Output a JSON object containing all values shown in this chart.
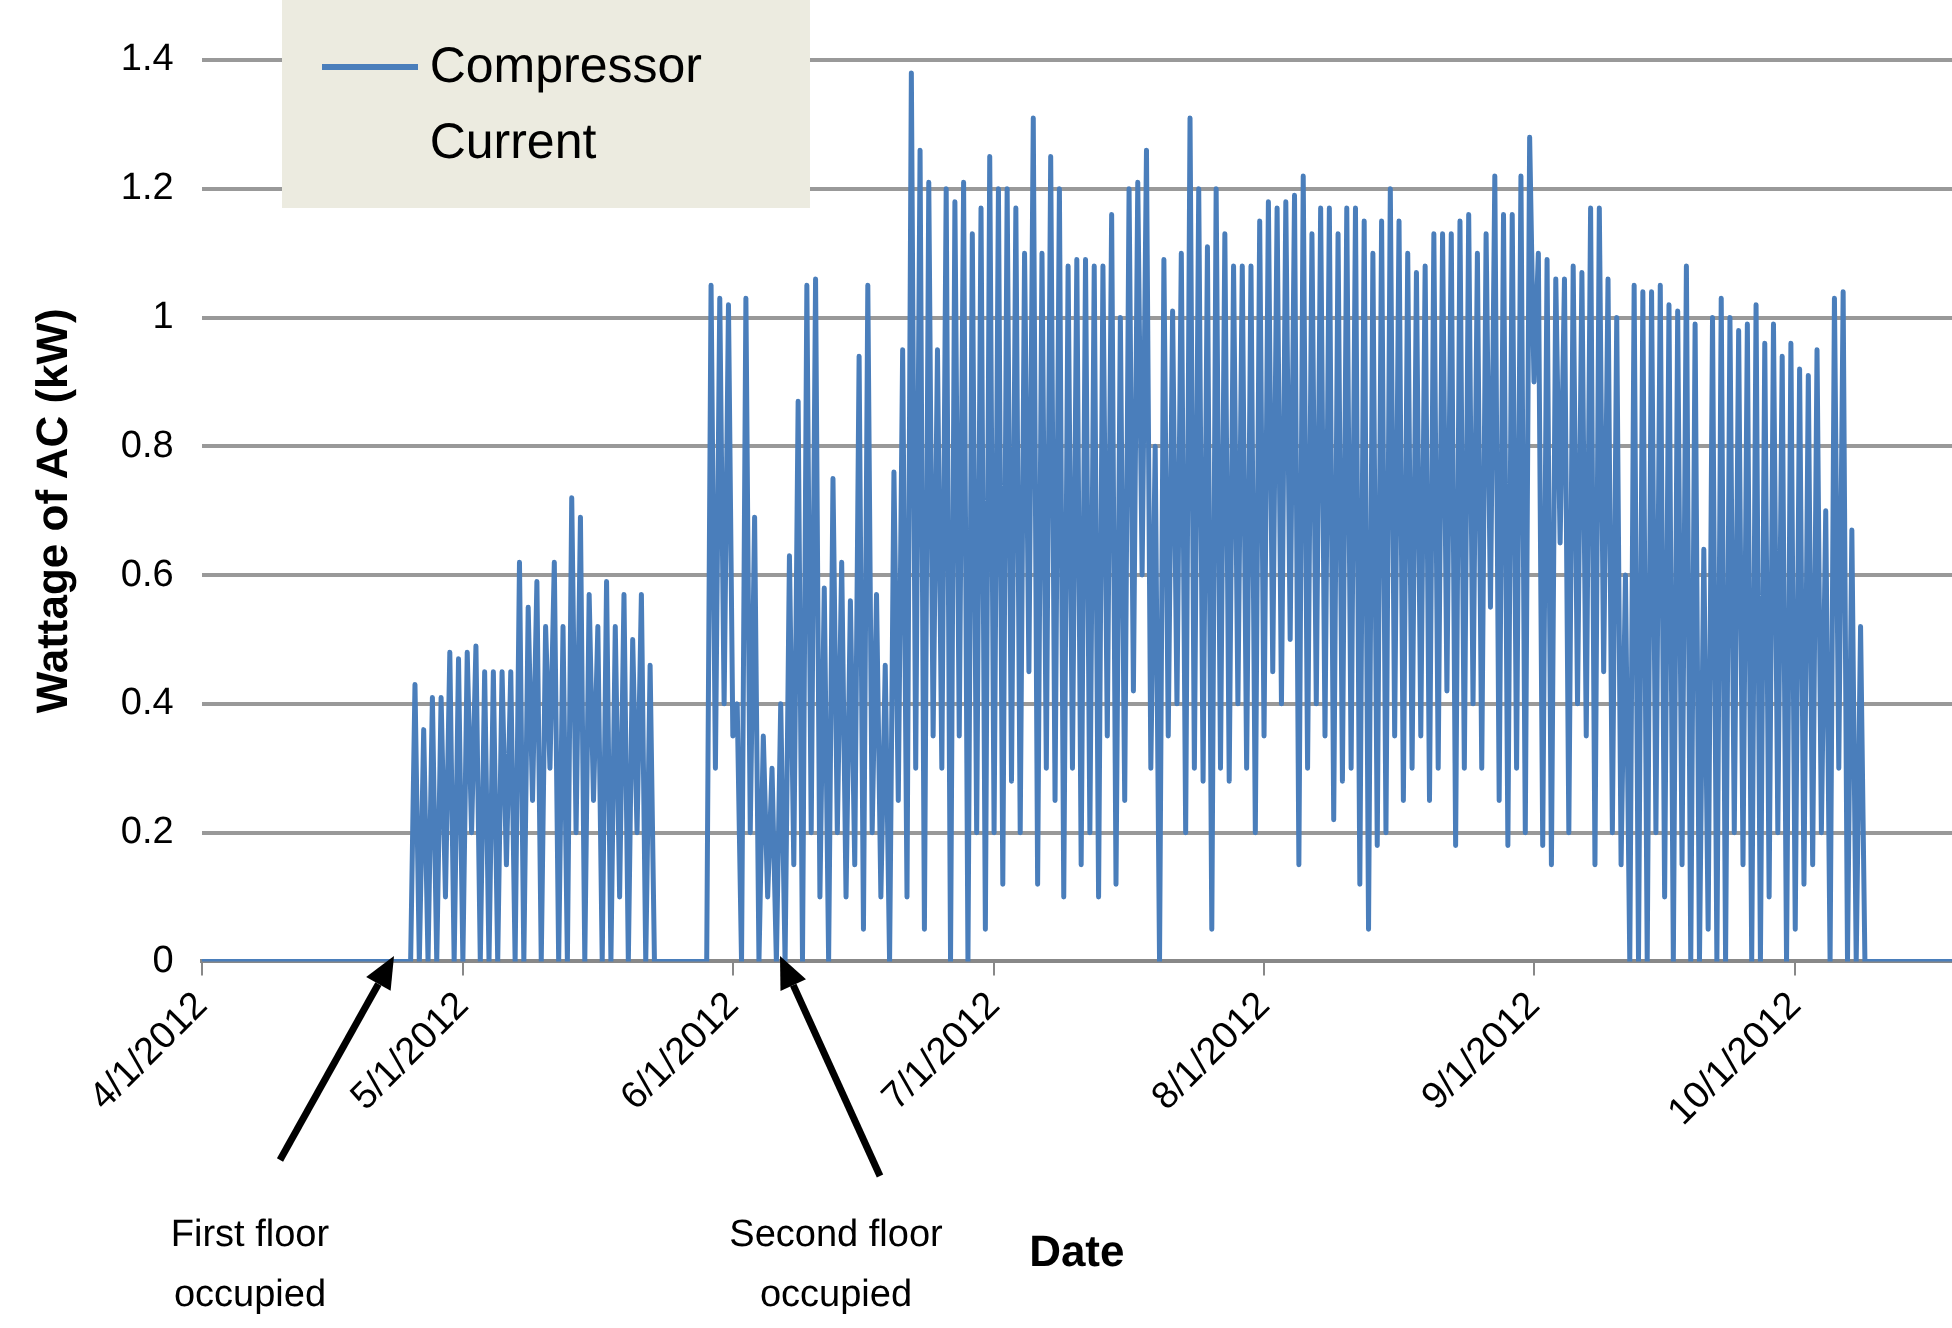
{
  "chart_data": {
    "type": "line",
    "xlabel": "Date",
    "ylabel": "Wattage of AC (kW)",
    "xlim": [
      "2012-04-01",
      "2012-10-19"
    ],
    "ylim": [
      0,
      1.4
    ],
    "xticks": [
      {
        "value": "2012-04-01",
        "label": "4/1/2012"
      },
      {
        "value": "2012-05-01",
        "label": "5/1/2012"
      },
      {
        "value": "2012-06-01",
        "label": "6/1/2012"
      },
      {
        "value": "2012-07-01",
        "label": "7/1/2012"
      },
      {
        "value": "2012-08-01",
        "label": "8/1/2012"
      },
      {
        "value": "2012-09-01",
        "label": "9/1/2012"
      },
      {
        "value": "2012-10-01",
        "label": "10/1/2012"
      }
    ],
    "yticks": [
      0,
      0.2,
      0.4,
      0.6,
      0.8,
      1,
      1.2,
      1.4
    ],
    "grid": "y",
    "legend": "top left",
    "marker": "none",
    "line_style": "solid",
    "annotations": [
      "First floor occupied",
      "Second floor occupied"
    ],
    "series": [
      {
        "name": "Compressor Current",
        "color": "#4a7ebb",
        "x": [
          "2012-04-01",
          "2012-04-25",
          "2012-04-25T12:00",
          "2012-04-26",
          "2012-04-26T12:00",
          "2012-04-27",
          "2012-04-27T12:00",
          "2012-04-28",
          "2012-04-28T12:00",
          "2012-04-29",
          "2012-04-29T12:00",
          "2012-04-30",
          "2012-04-30T12:00",
          "2012-05-01",
          "2012-05-01T12:00",
          "2012-05-02",
          "2012-05-02T12:00",
          "2012-05-03",
          "2012-05-03T12:00",
          "2012-05-04",
          "2012-05-04T12:00",
          "2012-05-05",
          "2012-05-05T12:00",
          "2012-05-06",
          "2012-05-06T12:00",
          "2012-05-07",
          "2012-05-07T12:00",
          "2012-05-08",
          "2012-05-08T12:00",
          "2012-05-09",
          "2012-05-09T12:00",
          "2012-05-10",
          "2012-05-10T12:00",
          "2012-05-11",
          "2012-05-11T12:00",
          "2012-05-12",
          "2012-05-12T12:00",
          "2012-05-13",
          "2012-05-13T12:00",
          "2012-05-14",
          "2012-05-14T12:00",
          "2012-05-15",
          "2012-05-15T12:00",
          "2012-05-16",
          "2012-05-16T12:00",
          "2012-05-17",
          "2012-05-17T12:00",
          "2012-05-18",
          "2012-05-18T12:00",
          "2012-05-19",
          "2012-05-19T12:00",
          "2012-05-20",
          "2012-05-20T12:00",
          "2012-05-21",
          "2012-05-21T12:00",
          "2012-05-22",
          "2012-05-22T12:00",
          "2012-05-23",
          "2012-05-28",
          "2012-05-29",
          "2012-05-29T12:00",
          "2012-05-30",
          "2012-05-30T12:00",
          "2012-05-31",
          "2012-05-31T12:00",
          "2012-06-01",
          "2012-06-01T12:00",
          "2012-06-02",
          "2012-06-02T12:00",
          "2012-06-03",
          "2012-06-03T12:00",
          "2012-06-04",
          "2012-06-04T12:00",
          "2012-06-05",
          "2012-06-05T12:00",
          "2012-06-06",
          "2012-06-06T12:00",
          "2012-06-07",
          "2012-06-07T12:00",
          "2012-06-08",
          "2012-06-08T12:00",
          "2012-06-09",
          "2012-06-09T12:00",
          "2012-06-10",
          "2012-06-10T12:00",
          "2012-06-11",
          "2012-06-11T12:00",
          "2012-06-12",
          "2012-06-12T12:00",
          "2012-06-13",
          "2012-06-13T12:00",
          "2012-06-14",
          "2012-06-14T12:00",
          "2012-06-15",
          "2012-06-15T12:00",
          "2012-06-16",
          "2012-06-16T12:00",
          "2012-06-17",
          "2012-06-17T12:00",
          "2012-06-18",
          "2012-06-18T12:00",
          "2012-06-19",
          "2012-06-19T12:00",
          "2012-06-20",
          "2012-06-20T12:00",
          "2012-06-21",
          "2012-06-21T12:00",
          "2012-06-22",
          "2012-06-22T12:00",
          "2012-06-23",
          "2012-06-23T12:00",
          "2012-06-24",
          "2012-06-24T12:00",
          "2012-06-25",
          "2012-06-25T12:00",
          "2012-06-26",
          "2012-06-26T12:00",
          "2012-06-27",
          "2012-06-27T12:00",
          "2012-06-28",
          "2012-06-28T12:00",
          "2012-06-29",
          "2012-06-29T12:00",
          "2012-06-30",
          "2012-06-30T12:00",
          "2012-07-01",
          "2012-07-01T12:00",
          "2012-07-02",
          "2012-07-02T12:00",
          "2012-07-03",
          "2012-07-03T12:00",
          "2012-07-04",
          "2012-07-04T12:00",
          "2012-07-05",
          "2012-07-05T12:00",
          "2012-07-06",
          "2012-07-06T12:00",
          "2012-07-07",
          "2012-07-07T12:00",
          "2012-07-08",
          "2012-07-08T12:00",
          "2012-07-09",
          "2012-07-09T12:00",
          "2012-07-10",
          "2012-07-10T12:00",
          "2012-07-11",
          "2012-07-11T12:00",
          "2012-07-12",
          "2012-07-12T12:00",
          "2012-07-13",
          "2012-07-13T12:00",
          "2012-07-14",
          "2012-07-14T12:00",
          "2012-07-15",
          "2012-07-15T12:00",
          "2012-07-16",
          "2012-07-16T12:00",
          "2012-07-17",
          "2012-07-17T12:00",
          "2012-07-18",
          "2012-07-18T12:00",
          "2012-07-19",
          "2012-07-19T12:00",
          "2012-07-20",
          "2012-07-20T12:00",
          "2012-07-21",
          "2012-07-21T12:00",
          "2012-07-22",
          "2012-07-22T12:00",
          "2012-07-23",
          "2012-07-23T12:00",
          "2012-07-24",
          "2012-07-24T12:00",
          "2012-07-25",
          "2012-07-25T12:00",
          "2012-07-26",
          "2012-07-26T12:00",
          "2012-07-27",
          "2012-07-27T12:00",
          "2012-07-28",
          "2012-07-28T12:00",
          "2012-07-29",
          "2012-07-29T12:00",
          "2012-07-30",
          "2012-07-30T12:00",
          "2012-07-31",
          "2012-07-31T12:00",
          "2012-08-01",
          "2012-08-01T12:00",
          "2012-08-02",
          "2012-08-02T12:00",
          "2012-08-03",
          "2012-08-03T12:00",
          "2012-08-04",
          "2012-08-04T12:00",
          "2012-08-05",
          "2012-08-05T12:00",
          "2012-08-06",
          "2012-08-06T12:00",
          "2012-08-07",
          "2012-08-07T12:00",
          "2012-08-08",
          "2012-08-08T12:00",
          "2012-08-09",
          "2012-08-09T12:00",
          "2012-08-10",
          "2012-08-10T12:00",
          "2012-08-11",
          "2012-08-11T12:00",
          "2012-08-12",
          "2012-08-12T12:00",
          "2012-08-13",
          "2012-08-13T12:00",
          "2012-08-14",
          "2012-08-14T12:00",
          "2012-08-15",
          "2012-08-15T12:00",
          "2012-08-16",
          "2012-08-16T12:00",
          "2012-08-17",
          "2012-08-17T12:00",
          "2012-08-18",
          "2012-08-18T12:00",
          "2012-08-19",
          "2012-08-19T12:00",
          "2012-08-20",
          "2012-08-20T12:00",
          "2012-08-21",
          "2012-08-21T12:00",
          "2012-08-22",
          "2012-08-22T12:00",
          "2012-08-23",
          "2012-08-23T12:00",
          "2012-08-24",
          "2012-08-24T12:00",
          "2012-08-25",
          "2012-08-25T12:00",
          "2012-08-26",
          "2012-08-26T12:00",
          "2012-08-27",
          "2012-08-27T12:00",
          "2012-08-28",
          "2012-08-28T12:00",
          "2012-08-29",
          "2012-08-29T12:00",
          "2012-08-30",
          "2012-08-30T12:00",
          "2012-08-31",
          "2012-08-31T12:00",
          "2012-09-01",
          "2012-09-01T12:00",
          "2012-09-02",
          "2012-09-02T12:00",
          "2012-09-03",
          "2012-09-03T12:00",
          "2012-09-04",
          "2012-09-04T12:00",
          "2012-09-05",
          "2012-09-05T12:00",
          "2012-09-06",
          "2012-09-06T12:00",
          "2012-09-07",
          "2012-09-07T12:00",
          "2012-09-08",
          "2012-09-08T12:00",
          "2012-09-09",
          "2012-09-09T12:00",
          "2012-09-10",
          "2012-09-10T12:00",
          "2012-09-11",
          "2012-09-11T12:00",
          "2012-09-12",
          "2012-09-12T12:00",
          "2012-09-13",
          "2012-09-13T12:00",
          "2012-09-14",
          "2012-09-14T12:00",
          "2012-09-15",
          "2012-09-15T12:00",
          "2012-09-16",
          "2012-09-16T12:00",
          "2012-09-17",
          "2012-09-17T12:00",
          "2012-09-18",
          "2012-09-18T12:00",
          "2012-09-19",
          "2012-09-19T12:00",
          "2012-09-20",
          "2012-09-20T12:00",
          "2012-09-21",
          "2012-09-21T12:00",
          "2012-09-22",
          "2012-09-22T12:00",
          "2012-09-23",
          "2012-09-23T12:00",
          "2012-09-24",
          "2012-09-24T12:00",
          "2012-09-25",
          "2012-09-25T12:00",
          "2012-09-26",
          "2012-09-26T12:00",
          "2012-09-27",
          "2012-09-27T12:00",
          "2012-09-28",
          "2012-09-28T12:00",
          "2012-09-29",
          "2012-09-29T12:00",
          "2012-09-30",
          "2012-09-30T12:00",
          "2012-10-01",
          "2012-10-01T12:00",
          "2012-10-02",
          "2012-10-02T12:00",
          "2012-10-03",
          "2012-10-03T12:00",
          "2012-10-04",
          "2012-10-04T12:00",
          "2012-10-05",
          "2012-10-05T12:00",
          "2012-10-06",
          "2012-10-06T12:00",
          "2012-10-07",
          "2012-10-07T12:00",
          "2012-10-08",
          "2012-10-08T12:00",
          "2012-10-09",
          "2012-10-19"
        ],
        "values": [
          0,
          0,
          0.43,
          0,
          0.36,
          0,
          0.41,
          0,
          0.41,
          0.1,
          0.48,
          0,
          0.47,
          0,
          0.48,
          0.2,
          0.49,
          0,
          0.45,
          0,
          0.45,
          0,
          0.45,
          0.15,
          0.45,
          0,
          0.62,
          0,
          0.55,
          0.25,
          0.59,
          0,
          0.52,
          0.3,
          0.62,
          0,
          0.52,
          0,
          0.72,
          0.2,
          0.69,
          0,
          0.57,
          0.25,
          0.52,
          0,
          0.59,
          0,
          0.52,
          0.1,
          0.57,
          0,
          0.5,
          0.2,
          0.57,
          0,
          0.46,
          0,
          0,
          0,
          1.05,
          0.3,
          1.03,
          0.4,
          1.02,
          0.35,
          0.4,
          0,
          1.03,
          0.2,
          0.69,
          0,
          0.35,
          0.1,
          0.3,
          0,
          0.4,
          0,
          0.63,
          0.15,
          0.87,
          0,
          1.05,
          0.2,
          1.06,
          0.1,
          0.58,
          0,
          0.75,
          0.2,
          0.62,
          0.1,
          0.56,
          0.15,
          0.94,
          0.05,
          1.05,
          0.2,
          0.57,
          0.1,
          0.46,
          0,
          0.76,
          0.25,
          0.95,
          0.1,
          1.38,
          0.3,
          1.26,
          0.05,
          1.21,
          0.35,
          0.95,
          0.3,
          1.2,
          0,
          1.18,
          0.35,
          1.21,
          0,
          1.13,
          0.2,
          1.17,
          0.05,
          1.25,
          0.2,
          1.2,
          0.12,
          1.2,
          0.28,
          1.17,
          0.2,
          1.1,
          0.45,
          1.31,
          0.12,
          1.1,
          0.3,
          1.25,
          0.25,
          1.2,
          0.1,
          1.08,
          0.3,
          1.09,
          0.15,
          1.09,
          0.2,
          1.08,
          0.1,
          1.08,
          0.35,
          1.16,
          0.12,
          1.0,
          0.25,
          1.2,
          0.42,
          1.21,
          0.6,
          1.26,
          0.3,
          0.8,
          0,
          1.09,
          0.35,
          1.01,
          0.4,
          1.1,
          0.2,
          1.31,
          0.3,
          1.2,
          0.28,
          1.11,
          0.05,
          1.2,
          0.3,
          1.13,
          0.28,
          1.08,
          0.4,
          1.08,
          0.3,
          1.08,
          0.2,
          1.15,
          0.35,
          1.18,
          0.45,
          1.17,
          0.4,
          1.18,
          0.5,
          1.19,
          0.15,
          1.22,
          0.3,
          1.13,
          0.4,
          1.17,
          0.35,
          1.17,
          0.22,
          1.13,
          0.28,
          1.17,
          0.3,
          1.17,
          0.12,
          1.15,
          0.05,
          1.1,
          0.18,
          1.15,
          0.2,
          1.2,
          0.35,
          1.15,
          0.25,
          1.1,
          0.3,
          1.07,
          0.35,
          1.08,
          0.25,
          1.13,
          0.3,
          1.13,
          0.42,
          1.13,
          0.18,
          1.15,
          0.3,
          1.16,
          0.4,
          1.1,
          0.3,
          1.13,
          0.55,
          1.22,
          0.25,
          1.16,
          0.18,
          1.16,
          0.3,
          1.22,
          0.2,
          1.28,
          0.9,
          1.1,
          0.18,
          1.09,
          0.15,
          1.06,
          0.65,
          1.06,
          0.2,
          1.08,
          0.4,
          1.07,
          0.35,
          1.17,
          0.15,
          1.17,
          0.45,
          1.06,
          0.2,
          1.0,
          0.15,
          0.6,
          0,
          1.05,
          0,
          1.04,
          0,
          1.04,
          0.2,
          1.05,
          0.1,
          1.02,
          0,
          1.01,
          0.15,
          1.08,
          0,
          0.99,
          0,
          0.64,
          0.05,
          1.0,
          0,
          1.03,
          0,
          1.0,
          0.2,
          0.98,
          0.15,
          0.99,
          0,
          1.02,
          0,
          0.96,
          0.1,
          0.99,
          0.2,
          0.94,
          0,
          0.96,
          0.05,
          0.92,
          0.12,
          0.91,
          0.15,
          0.95,
          0.2,
          0.7,
          0,
          1.03,
          0.3,
          1.04,
          0,
          0.67,
          0,
          0.52,
          0,
          0
        ]
      }
    ]
  }
}
